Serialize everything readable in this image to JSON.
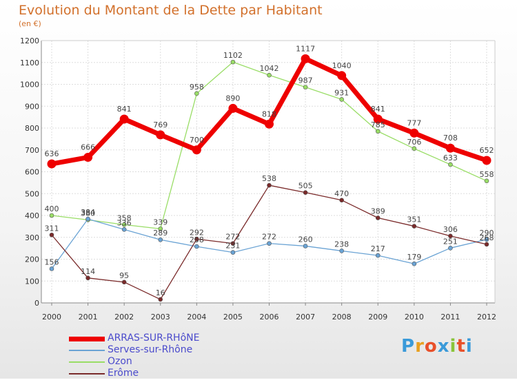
{
  "header": {
    "title": "Evolution du Montant de la Dette par Habitant",
    "unit": "(en €)"
  },
  "brand": {
    "name": "Proxiti",
    "colors": [
      "#3a9ad9",
      "#e8a020",
      "#e8502a",
      "#3a9ad9",
      "#8ac43a",
      "#e8502a",
      "#3a9ad9"
    ]
  },
  "chart_data": {
    "type": "line",
    "title": "Evolution du Montant de la Dette par Habitant",
    "subtitle": "(en €)",
    "x": [
      "2000",
      "2001",
      "2002",
      "2003",
      "2004",
      "2005",
      "2006",
      "2007",
      "2008",
      "2009",
      "2010",
      "2011",
      "2012"
    ],
    "ylim": [
      0,
      1200
    ],
    "yticks": [
      "0",
      "100",
      "200",
      "300",
      "400",
      "500",
      "600",
      "700",
      "800",
      "900",
      "1000",
      "1100",
      "1200"
    ],
    "grid": true,
    "legend_position": "bottom-left",
    "series": [
      {
        "name": "ARRAS-SUR-RHôNE",
        "color": "#ee0000",
        "width": 7,
        "values": [
          636,
          666,
          841,
          769,
          700,
          890,
          818,
          1117,
          1040,
          841,
          777,
          708,
          652
        ],
        "labels": [
          "636",
          "666",
          "841",
          "769",
          "700",
          "890",
          "818",
          "1117",
          "1040",
          "841",
          "777",
          "708",
          "652"
        ]
      },
      {
        "name": "Serves-sur-Rhône",
        "color": "#6aa3d4",
        "width": 1.3,
        "values": [
          156,
          384,
          336,
          289,
          258,
          231,
          272,
          260,
          238,
          217,
          179,
          251,
          290
        ],
        "labels": [
          "156",
          "384",
          "336",
          "289",
          "258",
          "231",
          "272",
          "260",
          "238",
          "217",
          "179",
          "251",
          "290"
        ]
      },
      {
        "name": "Ozon",
        "color": "#99dd66",
        "width": 1.3,
        "values": [
          400,
          380,
          358,
          339,
          958,
          1102,
          1042,
          987,
          931,
          785,
          706,
          633,
          558
        ],
        "labels": [
          "400",
          "380",
          "358",
          "339",
          "958",
          "1102",
          "1042",
          "987",
          "931",
          "785",
          "706",
          "633",
          "558"
        ]
      },
      {
        "name": "Erôme",
        "color": "#7a2a2a",
        "width": 1.3,
        "values": [
          311,
          114,
          95,
          16,
          292,
          272,
          538,
          505,
          470,
          389,
          351,
          306,
          268
        ],
        "labels": [
          "311",
          "114",
          "95",
          "16",
          "292",
          "272",
          "538",
          "505",
          "470",
          "389",
          "351",
          "306",
          "268"
        ]
      }
    ]
  }
}
